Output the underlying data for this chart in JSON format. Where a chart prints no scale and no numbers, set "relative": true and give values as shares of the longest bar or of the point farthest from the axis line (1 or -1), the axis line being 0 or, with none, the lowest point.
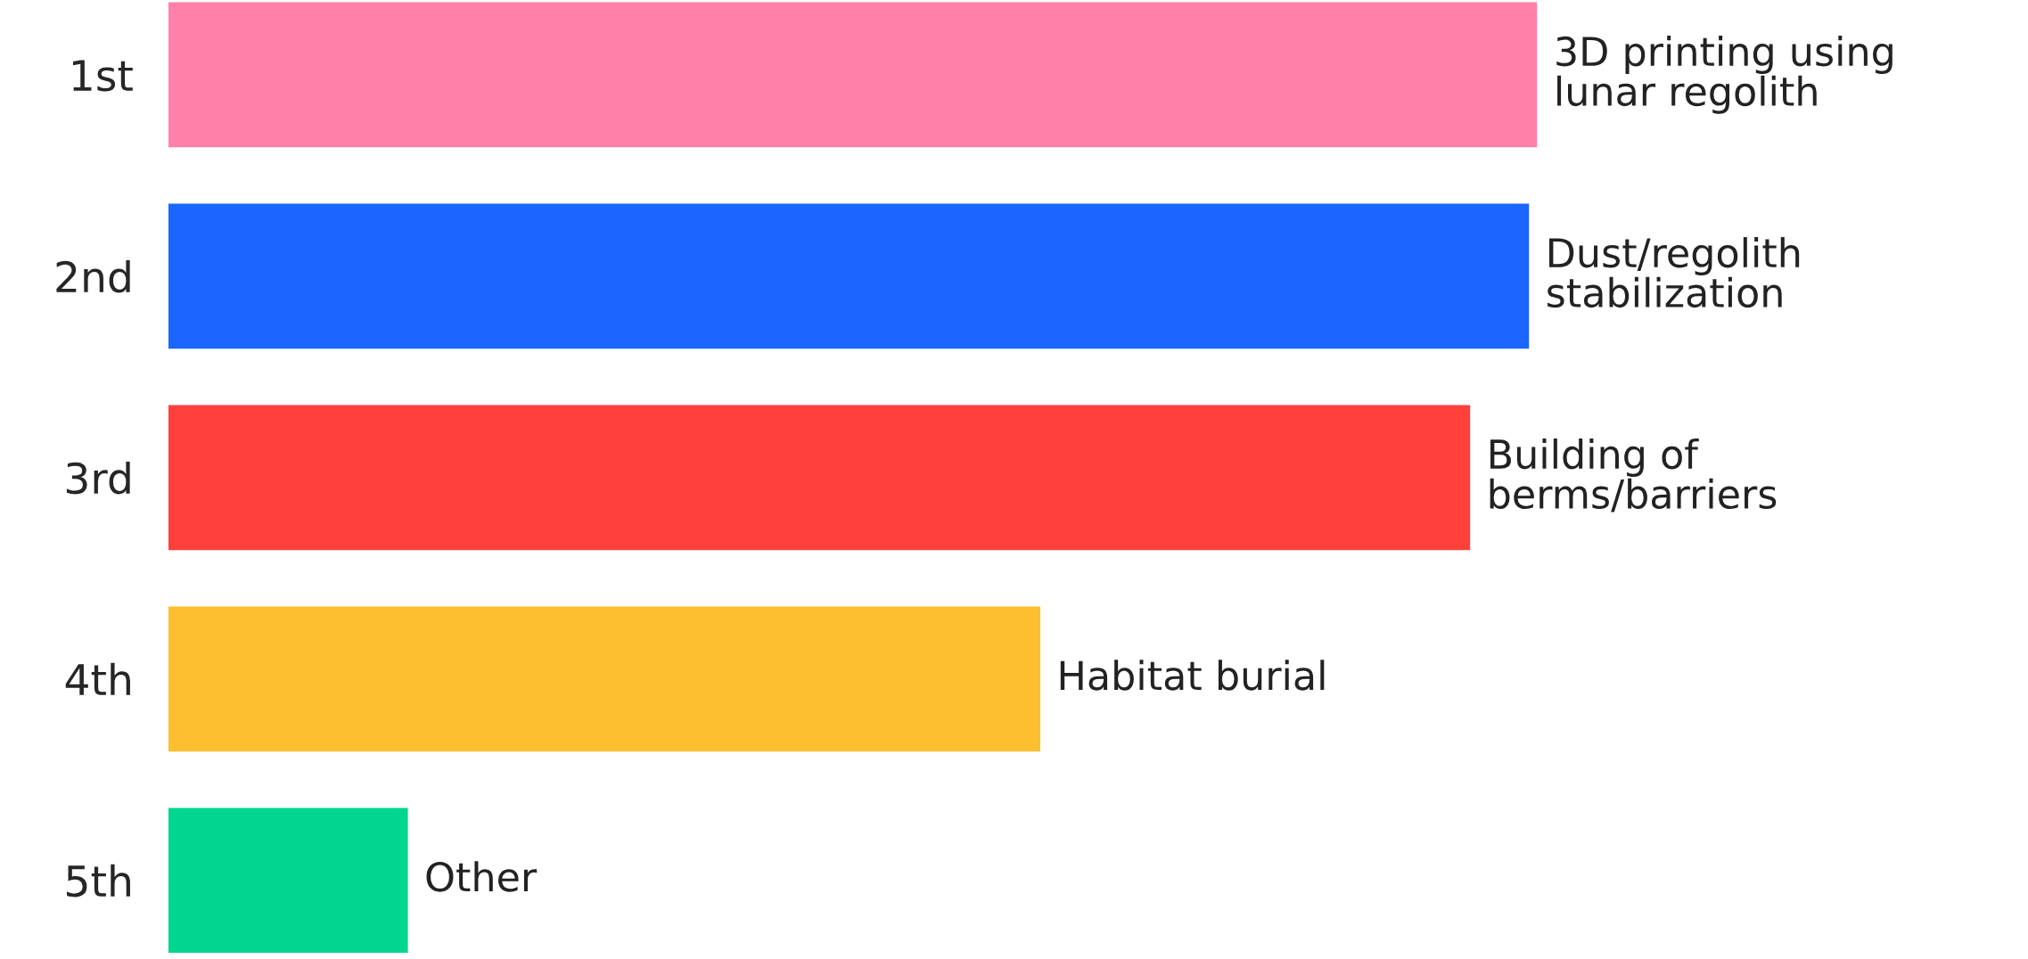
{
  "chart_data": {
    "type": "bar",
    "orientation": "horizontal",
    "relative": true,
    "categories": [
      "1st",
      "2nd",
      "3rd",
      "4th",
      "5th"
    ],
    "values": [
      1,
      0.994,
      0.951,
      0.637,
      0.175
    ],
    "colors": [
      "#ff80a8",
      "#1a66ff",
      "#ff403a",
      "#fbbf2f",
      "#00d68f"
    ],
    "annotations": [
      {
        "text": "3D printing using\nlunar regolith",
        "x": 1,
        "y": "1st"
      },
      {
        "text": "Dust/regolith\nstabilization",
        "x": 0.994,
        "y": "2nd"
      },
      {
        "text": "Building of\nberms/barriers",
        "x": 0.951,
        "y": "3rd"
      },
      {
        "text": "Habitat burial",
        "x": 0.637,
        "y": "4th"
      },
      {
        "text": "Other",
        "x": 0.175,
        "y": "5th"
      }
    ],
    "grid": false
  }
}
